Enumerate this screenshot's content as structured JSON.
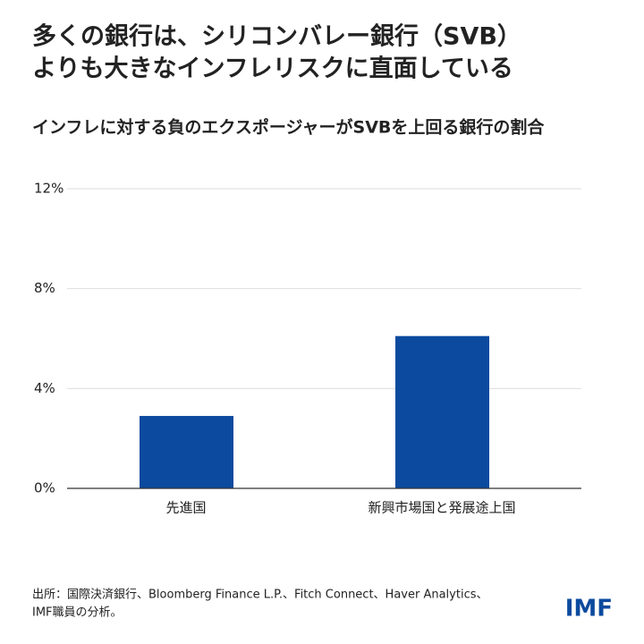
{
  "chart_data": {
    "type": "bar",
    "title": [
      "多くの銀行は、シリコンバレー銀行（SVB）",
      "よりも大きなインフレリスクに直面している"
    ],
    "subtitle": "インフレに対する負のエクスポージャーがSVBを上回る銀行の割合",
    "categories": [
      "先進国",
      "新興市場国と発展途上国"
    ],
    "values": [
      2.9,
      6.1
    ],
    "color": "#0b4a9e",
    "ylim": [
      0,
      12
    ],
    "yticks": [
      {
        "value": 0,
        "label": "0%"
      },
      {
        "value": 4,
        "label": "4%"
      },
      {
        "value": 8,
        "label": "8%"
      },
      {
        "value": 12,
        "label": "12%"
      }
    ],
    "grid": true,
    "source": [
      "出所：国際決済銀行、Bloomberg Finance L.P.、Fitch Connect、Haver Analytics、",
      "IMF職員の分析。"
    ],
    "logo": "IMF"
  }
}
